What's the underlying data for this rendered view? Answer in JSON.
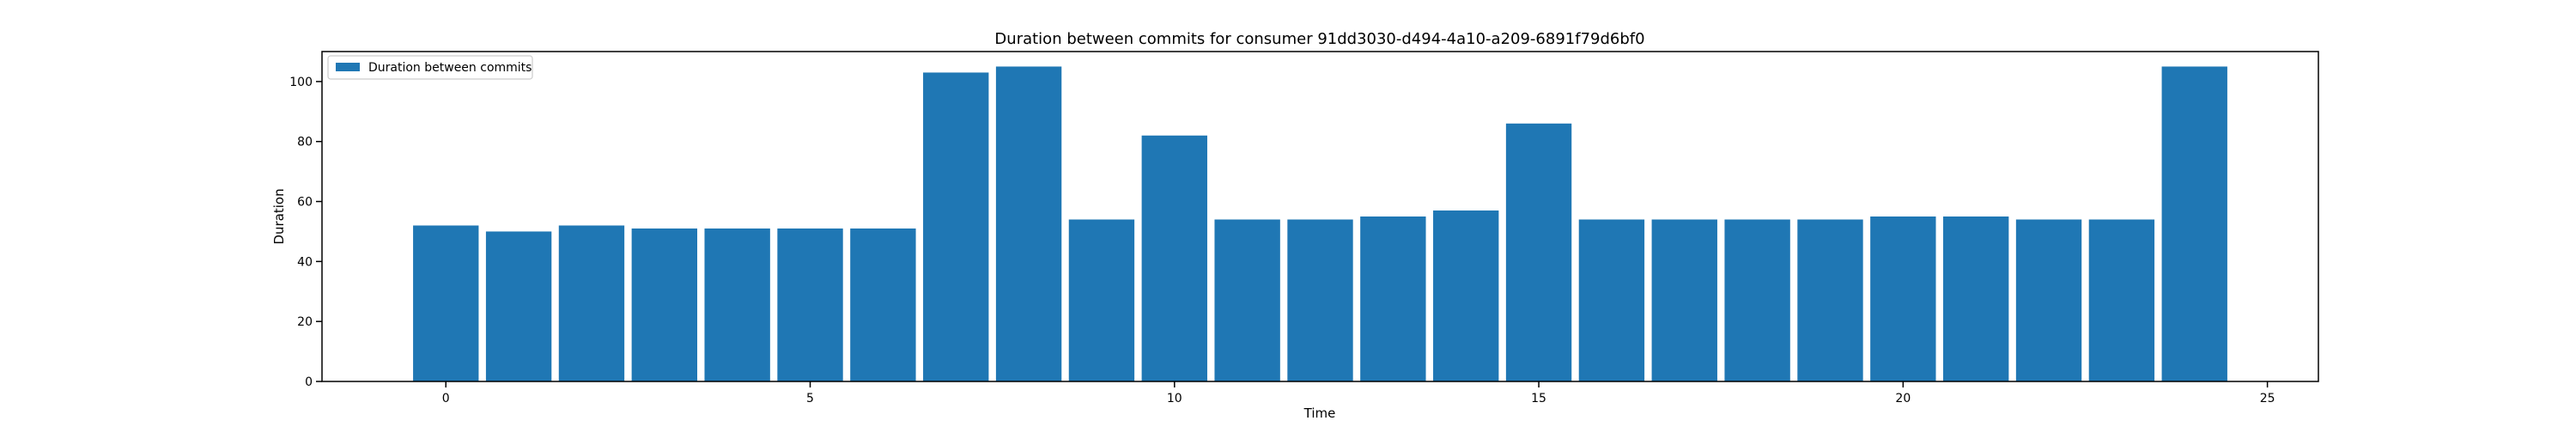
{
  "chart_data": {
    "type": "bar",
    "title": "Duration between commits for consumer 91dd3030-d494-4a10-a209-6891f79d6bf0",
    "xlabel": "Time",
    "ylabel": "Duration",
    "xlim": [
      -1.7,
      25.7
    ],
    "ylim": [
      0,
      110
    ],
    "xticks": [
      0,
      5,
      10,
      15,
      20,
      25
    ],
    "yticks": [
      0,
      20,
      40,
      60,
      80,
      100
    ],
    "grid": false,
    "legend_position": "upper-left",
    "bar_color": "#1f77b4",
    "series": [
      {
        "name": "Duration between commits",
        "x": [
          0,
          1,
          2,
          3,
          4,
          5,
          6,
          7,
          8,
          9,
          10,
          11,
          12,
          13,
          14,
          15,
          16,
          17,
          18,
          19,
          20,
          21,
          22,
          23,
          24
        ],
        "values": [
          52,
          50,
          52,
          51,
          51,
          51,
          51,
          103,
          105,
          54,
          82,
          54,
          54,
          55,
          57,
          86,
          54,
          54,
          54,
          54,
          55,
          55,
          54,
          54,
          105
        ]
      }
    ]
  }
}
